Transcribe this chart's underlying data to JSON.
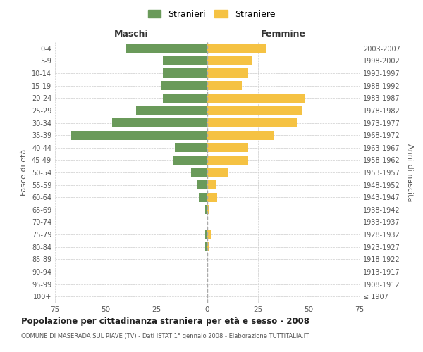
{
  "age_groups": [
    "100+",
    "95-99",
    "90-94",
    "85-89",
    "80-84",
    "75-79",
    "70-74",
    "65-69",
    "60-64",
    "55-59",
    "50-54",
    "45-49",
    "40-44",
    "35-39",
    "30-34",
    "25-29",
    "20-24",
    "15-19",
    "10-14",
    "5-9",
    "0-4"
  ],
  "birth_years": [
    "≤ 1907",
    "1908-1912",
    "1913-1917",
    "1918-1922",
    "1923-1927",
    "1928-1932",
    "1933-1937",
    "1938-1942",
    "1943-1947",
    "1948-1952",
    "1953-1957",
    "1958-1962",
    "1963-1967",
    "1968-1972",
    "1973-1977",
    "1978-1982",
    "1983-1987",
    "1988-1992",
    "1993-1997",
    "1998-2002",
    "2003-2007"
  ],
  "maschi": [
    0,
    0,
    0,
    0,
    1,
    1,
    0,
    1,
    4,
    5,
    8,
    17,
    16,
    67,
    47,
    35,
    22,
    23,
    22,
    22,
    40
  ],
  "femmine": [
    0,
    0,
    0,
    0,
    1,
    2,
    0,
    1,
    5,
    4,
    10,
    20,
    20,
    33,
    44,
    47,
    48,
    17,
    20,
    22,
    29
  ],
  "color_maschi": "#6a9a5a",
  "color_femmine": "#f5c243",
  "title": "Popolazione per cittadinanza straniera per età e sesso - 2008",
  "subtitle": "COMUNE DI MASERADA SUL PIAVE (TV) - Dati ISTAT 1° gennaio 2008 - Elaborazione TUTTITALIA.IT",
  "xlabel_left": "Maschi",
  "xlabel_right": "Femmine",
  "ylabel_left": "Fasce di età",
  "ylabel_right": "Anni di nascita",
  "legend_maschi": "Stranieri",
  "legend_femmine": "Straniere",
  "xlim": 75,
  "bg_color": "#ffffff",
  "grid_color": "#cccccc"
}
